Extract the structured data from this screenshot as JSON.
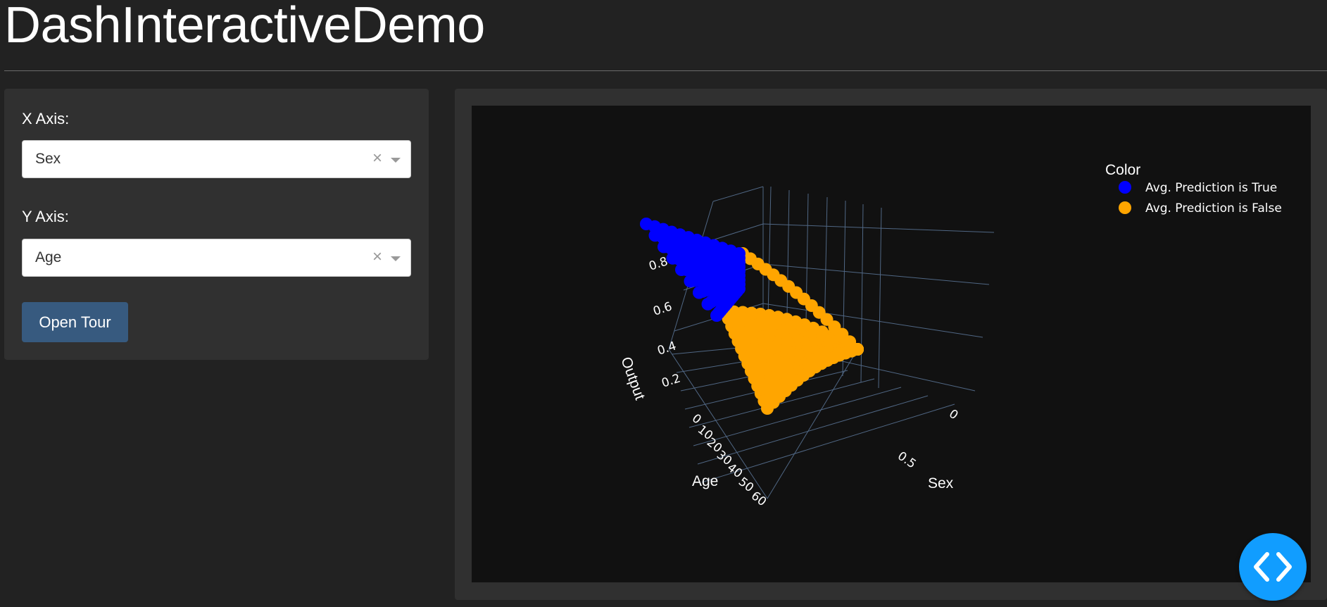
{
  "app": {
    "title": "DashInteractiveDemo"
  },
  "controls": {
    "x_axis": {
      "label": "X Axis:",
      "value": "Sex",
      "clear_glyph": "×"
    },
    "y_axis": {
      "label": "Y Axis:",
      "value": "Age",
      "clear_glyph": "×"
    },
    "open_tour_label": "Open Tour"
  },
  "plot": {
    "legend_title": "Color",
    "legend_items": [
      {
        "label": "Avg. Prediction is True",
        "color": "#0000ff"
      },
      {
        "label": "Avg. Prediction is False",
        "color": "#ffa500"
      }
    ],
    "axes": {
      "x": {
        "title": "Sex",
        "ticks": [
          "0",
          "0.5"
        ]
      },
      "y": {
        "title": "Age",
        "ticks": [
          "0",
          "10",
          "20",
          "30",
          "40",
          "50",
          "60"
        ]
      },
      "z": {
        "title": "Output",
        "ticks": [
          "0.2",
          "0.4",
          "0.6",
          "0.8"
        ]
      }
    },
    "colors": {
      "background": "#111111",
      "grid": "#506784"
    }
  },
  "chart_data": {
    "type": "scatter",
    "projection": "3d",
    "xlabel": "Sex",
    "ylabel": "Age",
    "zlabel": "Output",
    "xlim": [
      0,
      1
    ],
    "ylim": [
      0,
      70
    ],
    "zlim": [
      0,
      0.9
    ],
    "series": [
      {
        "name": "Avg. Prediction is True",
        "color": "#0000ff"
      },
      {
        "name": "Avg. Prediction is False",
        "color": "#ffa500"
      }
    ]
  },
  "fab": {
    "icon": "code-icon"
  }
}
